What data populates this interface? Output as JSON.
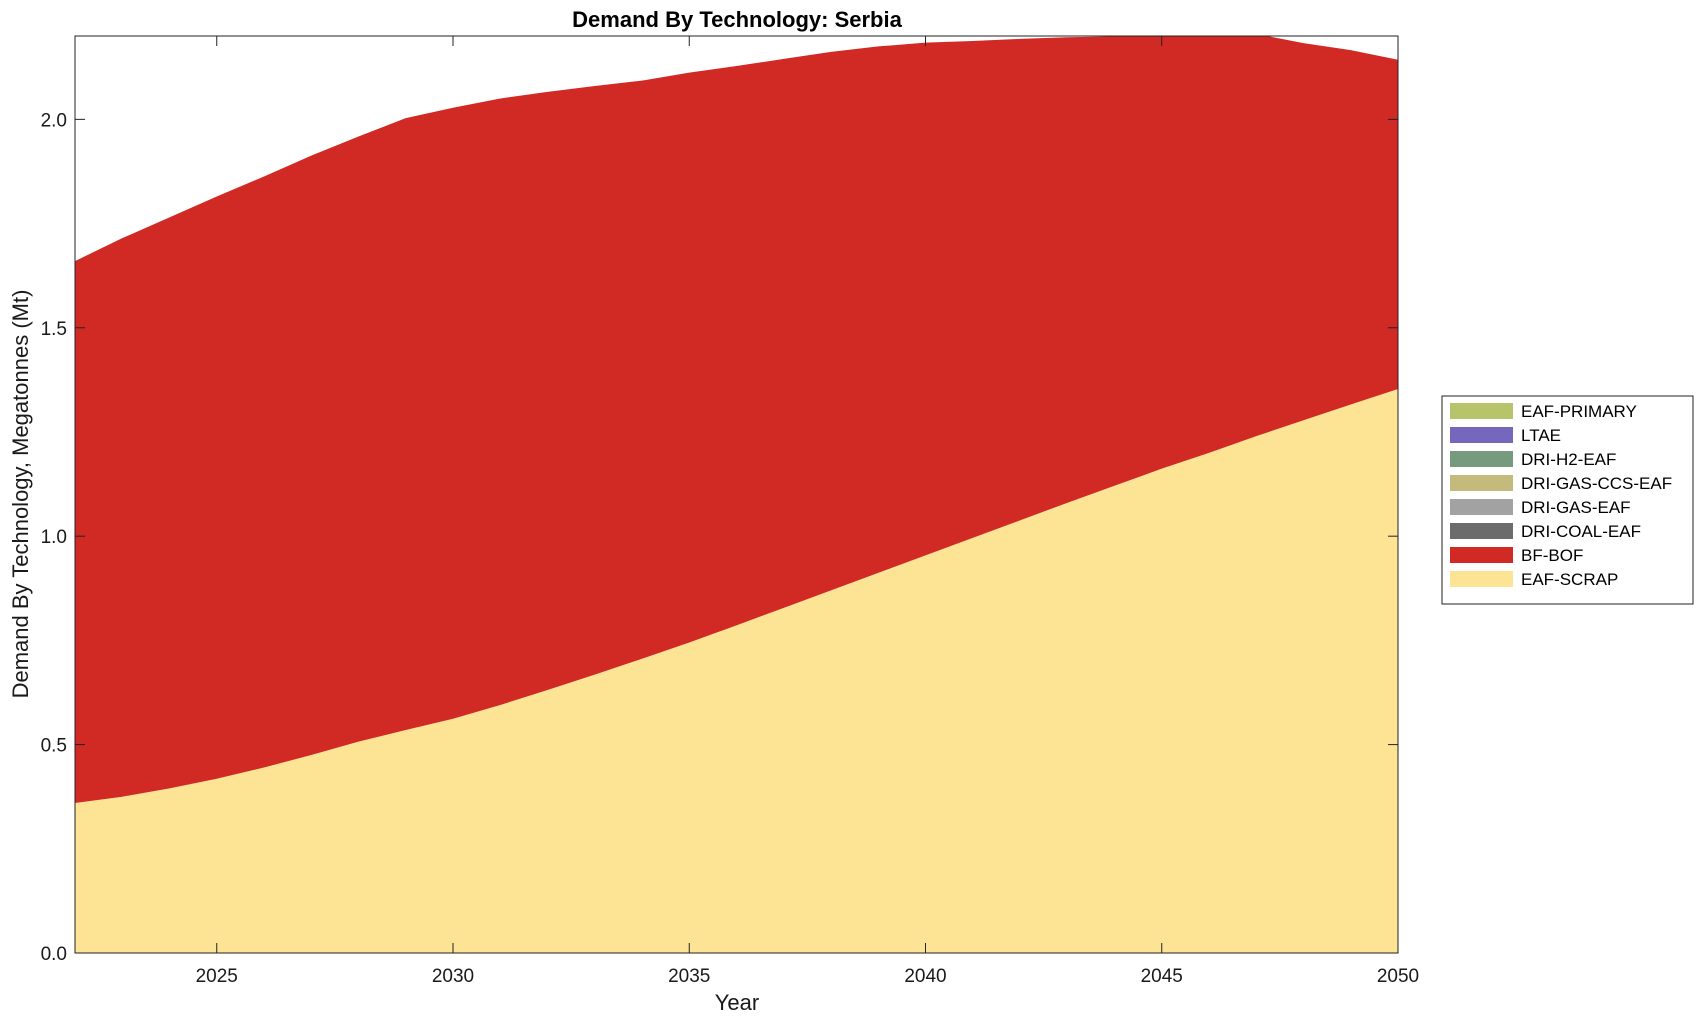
{
  "chart_data": {
    "type": "area",
    "stacked": true,
    "title": "Demand By Technology: Serbia",
    "xlabel": "Year",
    "ylabel": "Demand By Technology, Megatonnes (Mt)",
    "xlim": [
      2022,
      2050
    ],
    "ylim": [
      0,
      2.2
    ],
    "xticks": [
      2025,
      2030,
      2035,
      2040,
      2045,
      2050
    ],
    "yticks": [
      0.0,
      0.5,
      1.0,
      1.5,
      2.0
    ],
    "ytick_labels": [
      "0.0",
      "0.5",
      "1.0",
      "1.5",
      "2.0"
    ],
    "x": [
      2022,
      2023,
      2024,
      2025,
      2026,
      2027,
      2028,
      2029,
      2030,
      2031,
      2032,
      2033,
      2034,
      2035,
      2036,
      2037,
      2038,
      2039,
      2040,
      2041,
      2042,
      2043,
      2044,
      2045,
      2046,
      2047,
      2048,
      2049,
      2050
    ],
    "series": [
      {
        "name": "EAF-SCRAP",
        "color": "#FDE494",
        "values": [
          0.36,
          0.375,
          0.395,
          0.418,
          0.445,
          0.475,
          0.507,
          0.535,
          0.562,
          0.595,
          0.631,
          0.668,
          0.706,
          0.745,
          0.786,
          0.828,
          0.87,
          0.912,
          0.954,
          0.996,
          1.038,
          1.08,
          1.121,
          1.162,
          1.2,
          1.24,
          1.278,
          1.316,
          1.353
        ]
      },
      {
        "name": "BF-BOF",
        "color": "#D12A24",
        "values": [
          1.3,
          1.34,
          1.37,
          1.397,
          1.418,
          1.438,
          1.452,
          1.468,
          1.466,
          1.455,
          1.435,
          1.412,
          1.387,
          1.367,
          1.342,
          1.317,
          1.292,
          1.263,
          1.23,
          1.192,
          1.155,
          1.117,
          1.078,
          1.04,
          1.01,
          0.965,
          0.905,
          0.85,
          0.79
        ]
      },
      {
        "name": "DRI-COAL-EAF",
        "color": "#6C6C6C",
        "values": [
          0,
          0,
          0,
          0,
          0,
          0,
          0,
          0,
          0,
          0,
          0,
          0,
          0,
          0,
          0,
          0,
          0,
          0,
          0,
          0,
          0,
          0,
          0,
          0,
          0,
          0,
          0,
          0,
          0
        ]
      },
      {
        "name": "DRI-GAS-EAF",
        "color": "#A2A2A2",
        "values": [
          0,
          0,
          0,
          0,
          0,
          0,
          0,
          0,
          0,
          0,
          0,
          0,
          0,
          0,
          0,
          0,
          0,
          0,
          0,
          0,
          0,
          0,
          0,
          0,
          0,
          0,
          0,
          0,
          0
        ]
      },
      {
        "name": "DRI-GAS-CCS-EAF",
        "color": "#C4BA7B",
        "values": [
          0,
          0,
          0,
          0,
          0,
          0,
          0,
          0,
          0,
          0,
          0,
          0,
          0,
          0,
          0,
          0,
          0,
          0,
          0,
          0,
          0,
          0,
          0,
          0,
          0,
          0,
          0,
          0,
          0
        ]
      },
      {
        "name": "DRI-H2-EAF",
        "color": "#769A7D",
        "values": [
          0,
          0,
          0,
          0,
          0,
          0,
          0,
          0,
          0,
          0,
          0,
          0,
          0,
          0,
          0,
          0,
          0,
          0,
          0,
          0,
          0,
          0,
          0,
          0,
          0,
          0,
          0,
          0,
          0
        ]
      },
      {
        "name": "LTAE",
        "color": "#7467BC",
        "values": [
          0,
          0,
          0,
          0,
          0,
          0,
          0,
          0,
          0,
          0,
          0,
          0,
          0,
          0,
          0,
          0,
          0,
          0,
          0,
          0,
          0,
          0,
          0,
          0,
          0,
          0,
          0,
          0,
          0
        ]
      },
      {
        "name": "EAF-PRIMARY",
        "color": "#B8C46C",
        "values": [
          0,
          0,
          0,
          0,
          0,
          0,
          0,
          0,
          0,
          0,
          0,
          0,
          0,
          0,
          0,
          0,
          0,
          0,
          0,
          0,
          0,
          0,
          0,
          0,
          0,
          0,
          0,
          0,
          0
        ]
      }
    ],
    "legend": {
      "placement": "right",
      "entries": [
        "EAF-PRIMARY",
        "LTAE",
        "DRI-H2-EAF",
        "DRI-GAS-CCS-EAF",
        "DRI-GAS-EAF",
        "DRI-COAL-EAF",
        "BF-BOF",
        "EAF-SCRAP"
      ]
    }
  }
}
